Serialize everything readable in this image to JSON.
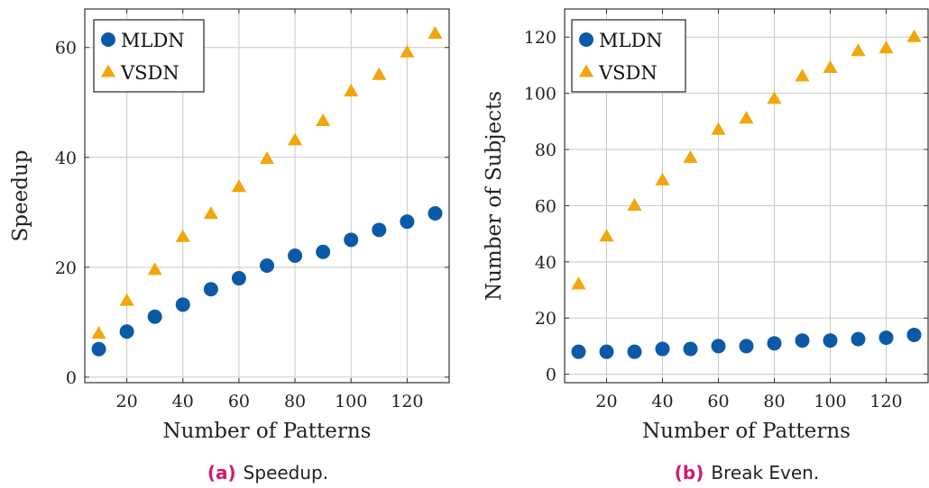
{
  "colors": {
    "mldn": "#0b5aa8",
    "vsdn": "#f2a60c",
    "caption_tag": "#d4186c"
  },
  "chart_data": [
    {
      "type": "scatter",
      "id": "a",
      "title": "",
      "caption_tag": "(a)",
      "caption_text": "Speedup.",
      "xlabel": "Number of Patterns",
      "ylabel": "Speedup",
      "xlim": [
        5,
        135
      ],
      "ylim": [
        -1,
        67
      ],
      "xticks": [
        20,
        40,
        60,
        80,
        100,
        120
      ],
      "yticks": [
        0,
        20,
        40,
        60
      ],
      "grid": true,
      "legend_position": "top-left",
      "x": [
        10,
        20,
        30,
        40,
        50,
        60,
        70,
        80,
        90,
        100,
        110,
        120,
        130
      ],
      "series": [
        {
          "name": "MLDN",
          "marker": "circle",
          "values": [
            5.1,
            8.3,
            11.0,
            13.2,
            16.0,
            18.0,
            20.3,
            22.1,
            22.8,
            25.0,
            26.8,
            28.3,
            29.8
          ]
        },
        {
          "name": "VSDN",
          "marker": "triangle",
          "values": [
            7.9,
            13.9,
            19.5,
            25.5,
            29.7,
            34.6,
            39.7,
            43.1,
            46.6,
            52.0,
            55.0,
            59.1,
            62.5
          ]
        }
      ]
    },
    {
      "type": "scatter",
      "id": "b",
      "title": "",
      "caption_tag": "(b)",
      "caption_text": "Break Even.",
      "xlabel": "Number of Patterns",
      "ylabel": "Number of Subjects",
      "xlim": [
        5,
        135
      ],
      "ylim": [
        -3,
        130
      ],
      "xticks": [
        20,
        40,
        60,
        80,
        100,
        120
      ],
      "yticks": [
        0,
        20,
        40,
        60,
        80,
        100,
        120
      ],
      "grid": true,
      "legend_position": "top-left",
      "x": [
        10,
        20,
        30,
        40,
        50,
        60,
        70,
        80,
        90,
        100,
        110,
        120,
        130
      ],
      "series": [
        {
          "name": "MLDN",
          "marker": "circle",
          "values": [
            8,
            8,
            8,
            9,
            9,
            10,
            10,
            11,
            12,
            12,
            12.5,
            13,
            14
          ]
        },
        {
          "name": "VSDN",
          "marker": "triangle",
          "values": [
            32,
            49,
            60,
            69,
            77,
            87,
            91,
            98,
            106,
            109,
            115,
            116,
            120
          ]
        }
      ]
    }
  ]
}
